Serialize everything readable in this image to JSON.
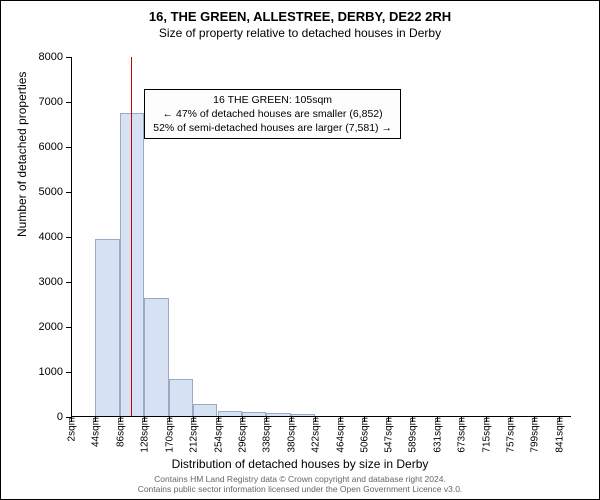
{
  "chart": {
    "type": "histogram",
    "title_main": "16, THE GREEN, ALLESTREE, DERBY, DE22 2RH",
    "title_sub": "Size of property relative to detached houses in Derby",
    "title_fontsize": 13,
    "subtitle_fontsize": 12,
    "ylabel": "Number of detached properties",
    "xlabel": "Distribution of detached houses by size in Derby",
    "label_fontsize": 12,
    "tick_fontsize": 11,
    "xtick_fontsize": 10,
    "ylim": [
      0,
      8000
    ],
    "ytick_step": 1000,
    "yticks": [
      0,
      1000,
      2000,
      3000,
      4000,
      5000,
      6000,
      7000,
      8000
    ],
    "xlim": [
      2,
      862
    ],
    "xticks": [
      2,
      44,
      86,
      128,
      170,
      212,
      254,
      296,
      338,
      380,
      422,
      464,
      506,
      547,
      589,
      631,
      673,
      715,
      757,
      799,
      841
    ],
    "xtick_suffix": "sqm",
    "bars": [
      {
        "x": 2,
        "w": 42,
        "v": 0
      },
      {
        "x": 44,
        "w": 42,
        "v": 3950
      },
      {
        "x": 86,
        "w": 42,
        "v": 6750
      },
      {
        "x": 128,
        "w": 42,
        "v": 2650
      },
      {
        "x": 170,
        "w": 42,
        "v": 850
      },
      {
        "x": 212,
        "w": 42,
        "v": 280
      },
      {
        "x": 254,
        "w": 42,
        "v": 130
      },
      {
        "x": 296,
        "w": 42,
        "v": 120
      },
      {
        "x": 338,
        "w": 42,
        "v": 80
      },
      {
        "x": 380,
        "w": 42,
        "v": 60
      },
      {
        "x": 422,
        "w": 42,
        "v": 0
      },
      {
        "x": 464,
        "w": 42,
        "v": 0
      }
    ],
    "bar_fill": "#d6e2f3",
    "bar_stroke": "#9aa9c4",
    "marker": {
      "x": 105,
      "color": "#cc0000"
    },
    "background_color": "#ffffff",
    "axis_color": "#000000",
    "annotation": {
      "x_data": 128,
      "y_data": 7300,
      "bg": "#fdfdfd",
      "lines": [
        "16 THE GREEN: 105sqm",
        "← 47% of detached houses are smaller (6,852)",
        "52% of semi-detached houses are larger (7,581) →"
      ]
    },
    "footnote_line1": "Contains HM Land Registry data © Crown copyright and database right 2024.",
    "footnote_line2": "Contains public sector information licensed under the Open Government Licence v3.0."
  }
}
